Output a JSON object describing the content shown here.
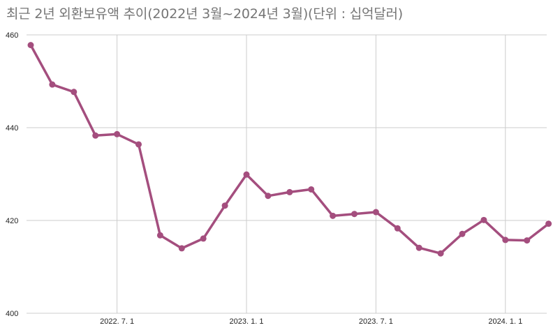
{
  "chart_data": {
    "type": "line",
    "title": "최근 2년 외환보유액 추이(2022년 3월~2024년 3월)(단위 : 십억달러)",
    "xlabel": "",
    "ylabel": "",
    "ylim": [
      400,
      460
    ],
    "y_ticks": [
      "400",
      "420",
      "440",
      "460"
    ],
    "x_ticks": [
      {
        "label": "2022. 7. 1",
        "month_index": 4
      },
      {
        "label": "2023. 1. 1",
        "month_index": 10
      },
      {
        "label": "2023. 7. 1",
        "month_index": 16
      },
      {
        "label": "2024. 1. 1",
        "month_index": 22
      }
    ],
    "grid": true,
    "legend": "none",
    "series": [
      {
        "color": "#a44e7e",
        "x": [
          "2022-03",
          "2022-04",
          "2022-05",
          "2022-06",
          "2022-07",
          "2022-08",
          "2022-09",
          "2022-10",
          "2022-11",
          "2022-12",
          "2023-01",
          "2023-02",
          "2023-03",
          "2023-04",
          "2023-05",
          "2023-06",
          "2023-07",
          "2023-08",
          "2023-09",
          "2023-10",
          "2023-11",
          "2023-12",
          "2024-01",
          "2024-02",
          "2024-03"
        ],
        "values": [
          457.8,
          449.3,
          447.7,
          438.3,
          438.6,
          436.4,
          416.8,
          414.0,
          416.1,
          423.2,
          429.9,
          425.3,
          426.1,
          426.7,
          421.0,
          421.4,
          421.8,
          418.3,
          414.1,
          412.9,
          417.1,
          420.1,
          415.8,
          415.7,
          419.3
        ]
      }
    ]
  }
}
